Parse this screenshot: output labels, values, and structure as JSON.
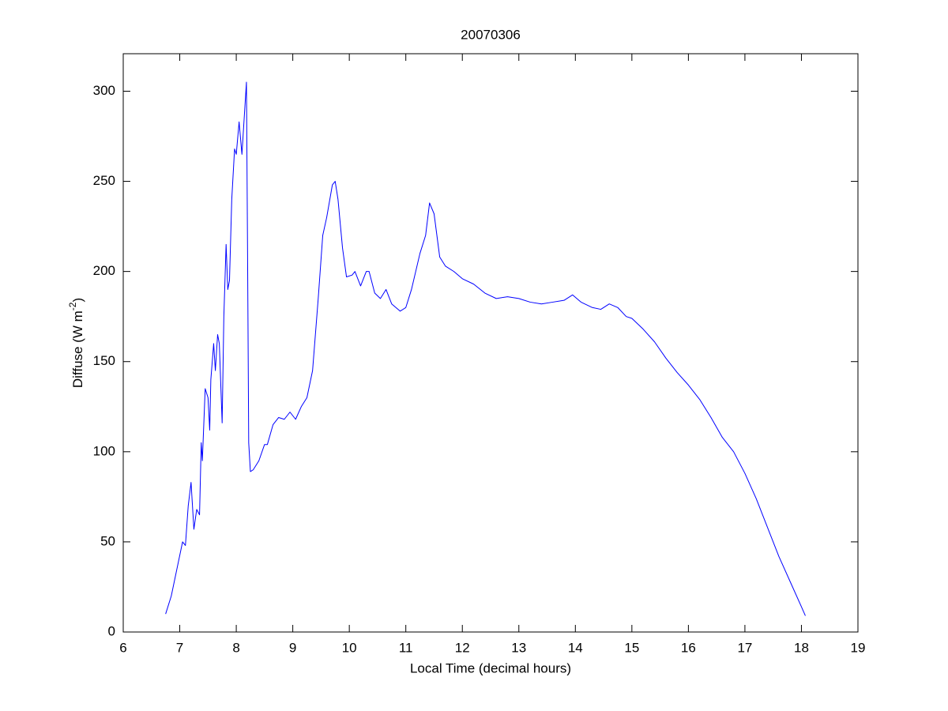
{
  "chart_data": {
    "type": "line",
    "title": "20070306",
    "xlabel": "Local Time (decimal hours)",
    "ylabel": {
      "text": "Diffuse (W m",
      "sup": "-2",
      "close": ")"
    },
    "x": [
      6.75,
      6.85,
      6.95,
      7.05,
      7.1,
      7.15,
      7.2,
      7.25,
      7.3,
      7.35,
      7.38,
      7.4,
      7.45,
      7.5,
      7.53,
      7.55,
      7.6,
      7.63,
      7.67,
      7.7,
      7.75,
      7.78,
      7.82,
      7.85,
      7.88,
      7.92,
      7.97,
      8.0,
      8.05,
      8.1,
      8.15,
      8.18,
      8.2,
      8.22,
      8.25,
      8.3,
      8.4,
      8.5,
      8.55,
      8.65,
      8.75,
      8.85,
      8.95,
      9.05,
      9.15,
      9.25,
      9.35,
      9.45,
      9.53,
      9.6,
      9.7,
      9.75,
      9.8,
      9.88,
      9.95,
      10.05,
      10.1,
      10.2,
      10.3,
      10.35,
      10.45,
      10.55,
      10.65,
      10.75,
      10.9,
      11.0,
      11.1,
      11.25,
      11.35,
      11.42,
      11.5,
      11.6,
      11.7,
      11.85,
      12.0,
      12.2,
      12.4,
      12.6,
      12.8,
      13.0,
      13.2,
      13.4,
      13.6,
      13.8,
      13.95,
      14.1,
      14.3,
      14.45,
      14.6,
      14.75,
      14.9,
      15.0,
      15.2,
      15.4,
      15.6,
      15.8,
      16.0,
      16.2,
      16.4,
      16.6,
      16.8,
      17.0,
      17.2,
      17.4,
      17.6,
      17.8,
      18.0,
      18.07
    ],
    "series": [
      {
        "color": "#0000ff",
        "values": [
          10,
          20,
          35,
          50,
          48,
          70,
          83,
          57,
          68,
          65,
          105,
          95,
          135,
          130,
          112,
          140,
          160,
          145,
          165,
          160,
          116,
          175,
          215,
          190,
          195,
          240,
          268,
          265,
          283,
          265,
          290,
          305,
          210,
          105,
          89,
          90,
          95,
          104,
          104,
          115,
          119,
          118,
          122,
          118,
          125,
          130,
          145,
          185,
          220,
          230,
          248,
          250,
          240,
          213,
          197,
          198,
          200,
          192,
          200,
          200,
          188,
          185,
          190,
          182,
          178,
          180,
          190,
          210,
          220,
          238,
          232,
          208,
          203,
          200,
          196,
          193,
          188,
          185,
          186,
          185,
          183,
          182,
          183,
          184,
          187,
          183,
          180,
          179,
          182,
          180,
          175,
          174,
          168,
          161,
          152,
          144,
          137,
          129,
          119,
          108,
          100,
          88,
          74,
          58,
          42,
          28,
          14,
          9
        ]
      }
    ],
    "xlim": [
      6,
      19
    ],
    "xticks": [
      6,
      7,
      8,
      9,
      10,
      11,
      12,
      13,
      14,
      15,
      16,
      17,
      18,
      19
    ],
    "ylim": [
      0,
      320.8
    ],
    "yticks": [
      0,
      50,
      100,
      150,
      200,
      250,
      300
    ]
  }
}
